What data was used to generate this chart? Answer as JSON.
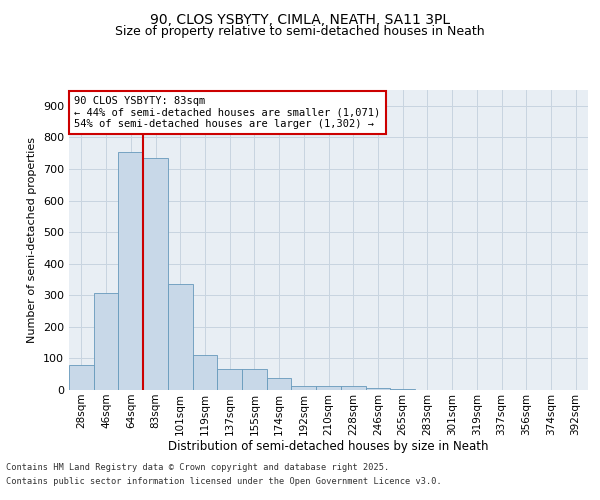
{
  "title_line1": "90, CLOS YSBYTY, CIMLA, NEATH, SA11 3PL",
  "title_line2": "Size of property relative to semi-detached houses in Neath",
  "xlabel": "Distribution of semi-detached houses by size in Neath",
  "ylabel": "Number of semi-detached properties",
  "categories": [
    "28sqm",
    "46sqm",
    "64sqm",
    "83sqm",
    "101sqm",
    "119sqm",
    "137sqm",
    "155sqm",
    "174sqm",
    "192sqm",
    "210sqm",
    "228sqm",
    "246sqm",
    "265sqm",
    "283sqm",
    "301sqm",
    "319sqm",
    "337sqm",
    "356sqm",
    "374sqm",
    "392sqm"
  ],
  "values": [
    80,
    308,
    755,
    735,
    335,
    110,
    68,
    68,
    38,
    13,
    12,
    12,
    7,
    3,
    0,
    0,
    0,
    0,
    0,
    0,
    0
  ],
  "bar_color": "#c8d8e8",
  "bar_edge_color": "#6699bb",
  "grid_color": "#c8d4e0",
  "bg_color": "#e8eef4",
  "property_bar_index": 3,
  "annotation_title": "90 CLOS YSBYTY: 83sqm",
  "annotation_line1": "← 44% of semi-detached houses are smaller (1,071)",
  "annotation_line2": "54% of semi-detached houses are larger (1,302) →",
  "annotation_box_facecolor": "#ffffff",
  "annotation_box_edgecolor": "#cc0000",
  "property_line_color": "#cc0000",
  "footer_line1": "Contains HM Land Registry data © Crown copyright and database right 2025.",
  "footer_line2": "Contains public sector information licensed under the Open Government Licence v3.0.",
  "ylim": [
    0,
    950
  ],
  "yticks": [
    0,
    100,
    200,
    300,
    400,
    500,
    600,
    700,
    800,
    900
  ]
}
